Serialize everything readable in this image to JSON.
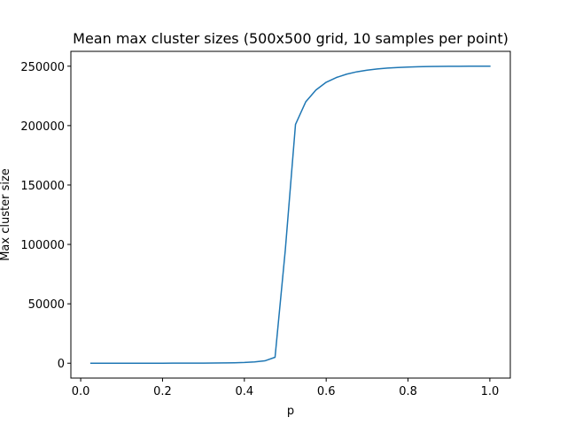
{
  "chart_data": {
    "type": "line",
    "title": "Mean max cluster sizes (500x500 grid, 10 samples per point)",
    "xlabel": "p",
    "ylabel": "Max cluster size",
    "xlim": [
      -0.024,
      1.05
    ],
    "ylim": [
      -12500,
      262500
    ],
    "xticks": [
      0.0,
      0.2,
      0.4,
      0.6,
      0.8,
      1.0
    ],
    "xtick_labels": [
      "0.0",
      "0.2",
      "0.4",
      "0.6",
      "0.8",
      "1.0"
    ],
    "yticks": [
      0,
      50000,
      100000,
      150000,
      200000,
      250000
    ],
    "ytick_labels": [
      "0",
      "50000",
      "100000",
      "150000",
      "200000",
      "250000"
    ],
    "grid": false,
    "series": [
      {
        "color": "#1f77b4",
        "x": [
          0.025,
          0.05,
          0.075,
          0.1,
          0.125,
          0.15,
          0.175,
          0.2,
          0.225,
          0.25,
          0.275,
          0.3,
          0.325,
          0.35,
          0.375,
          0.4,
          0.425,
          0.45,
          0.475,
          0.5,
          0.525,
          0.55,
          0.575,
          0.6,
          0.625,
          0.65,
          0.675,
          0.7,
          0.725,
          0.75,
          0.775,
          0.8,
          0.825,
          0.85,
          0.875,
          0.9,
          0.925,
          0.95,
          0.975,
          1.0
        ],
        "y": [
          1,
          2,
          3,
          5,
          8,
          12,
          17,
          25,
          35,
          50,
          70,
          100,
          150,
          220,
          350,
          600,
          1100,
          2000,
          5000,
          95000,
          201000,
          220000,
          230000,
          236500,
          240500,
          243300,
          245300,
          246700,
          247700,
          248400,
          248900,
          249300,
          249550,
          249720,
          249830,
          249900,
          249950,
          249980,
          249995,
          250000
        ]
      }
    ]
  }
}
